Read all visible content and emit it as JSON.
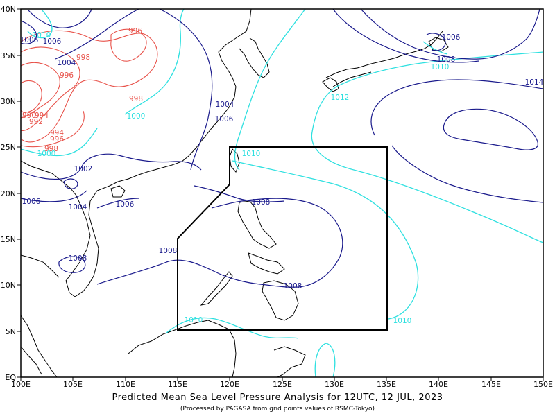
{
  "map": {
    "x_labels": [
      "100E",
      "105E",
      "110E",
      "115E",
      "120E",
      "125E",
      "130E",
      "135E",
      "140E",
      "145E",
      "150E"
    ],
    "y_labels": [
      "EQ",
      "5N",
      "10N",
      "15N",
      "20N",
      "25N",
      "30N",
      "35N",
      "40N"
    ],
    "colors": {
      "dark": "#1a1a8c",
      "cyan": "#2ee0e0",
      "red": "#e8524a",
      "coast": "#000000",
      "par": "#000000"
    },
    "contours_dark": [
      "1006",
      "1006",
      "1004",
      "1004",
      "1006",
      "1002",
      "1006",
      "1004",
      "1006",
      "1008",
      "1008",
      "1008",
      "1008",
      "1006",
      "1008",
      "1014"
    ],
    "contours_cyan": [
      "1010",
      "1000",
      "1000",
      "1010",
      "1012",
      "1010",
      "1010",
      "1010"
    ],
    "contours_red": [
      "996",
      "998",
      "996",
      "998",
      "990",
      "994",
      "992",
      "994",
      "996",
      "998"
    ]
  },
  "caption": {
    "title": "Predicted Mean Sea Level Pressure Analysis for 12UTC, 12 JUL, 2023",
    "subtitle": "(Processed by PAGASA from grid points values of RSMC-Tokyo)"
  }
}
